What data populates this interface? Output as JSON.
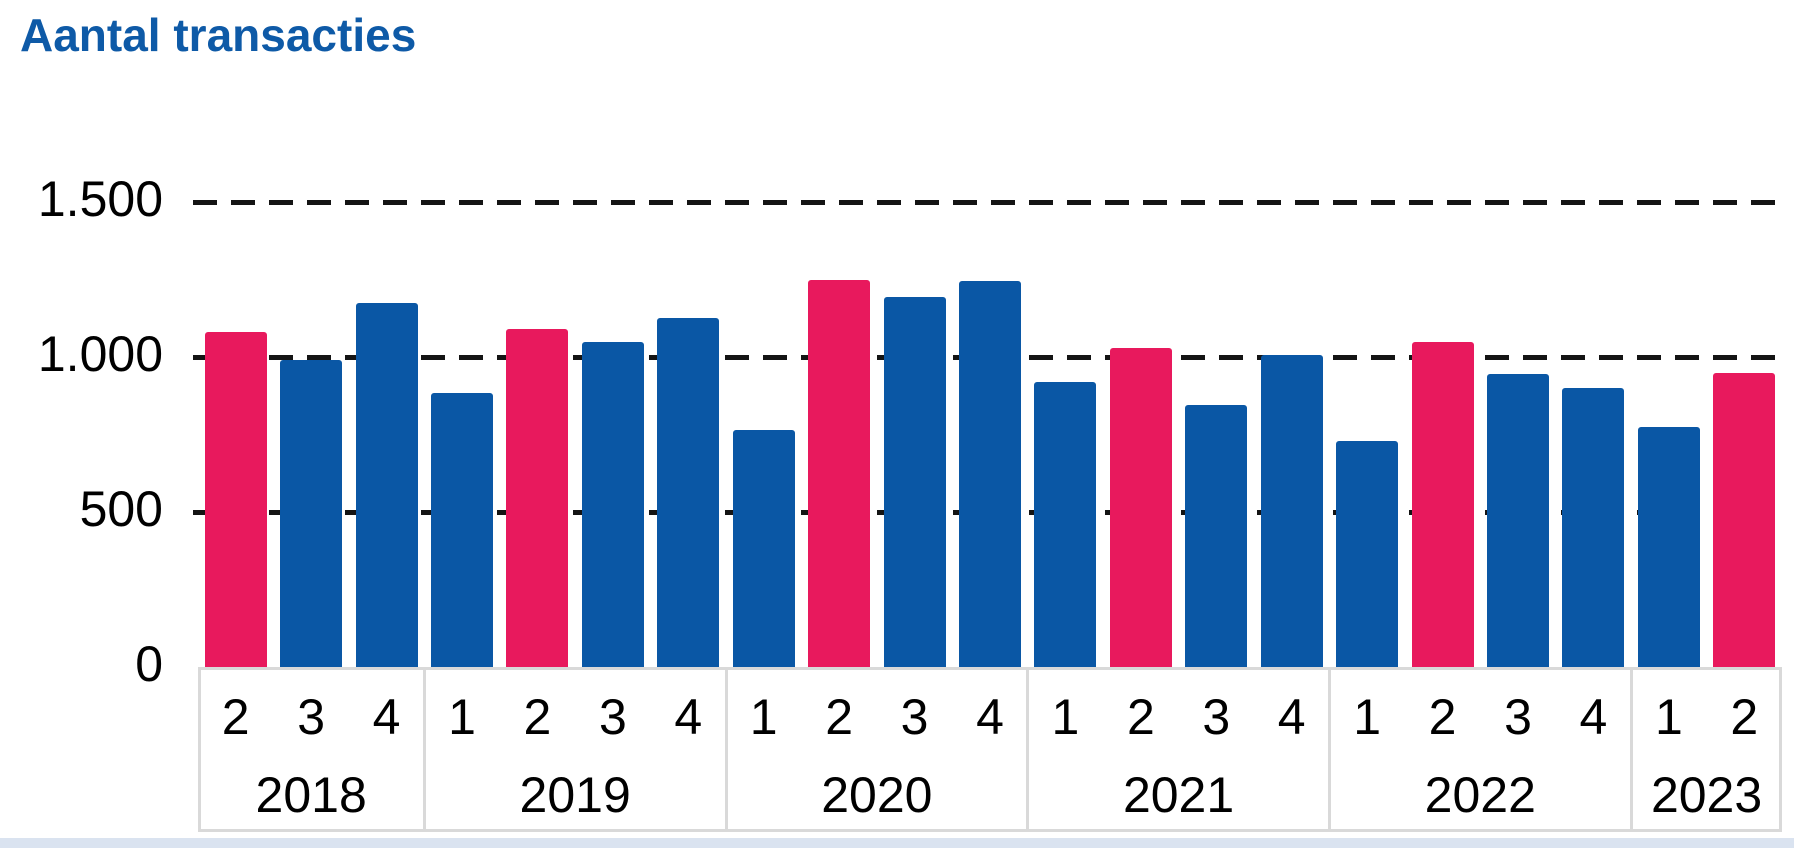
{
  "chart_data": {
    "type": "bar",
    "title": "Aantal transacties",
    "ylabel": "",
    "xlabel": "",
    "ylim": [
      0,
      1500
    ],
    "y_ticks": [
      {
        "label": "1.500",
        "value": 1500
      },
      {
        "label": "1.000",
        "value": 1000
      },
      {
        "label": "500",
        "value": 500
      },
      {
        "label": "0",
        "value": 0
      }
    ],
    "gridline_values": [
      500,
      1000,
      1500
    ],
    "grid_style": "dashed",
    "legend": "none",
    "groups": [
      {
        "year": "2018",
        "quarters": [
          "2",
          "3",
          "4"
        ],
        "values": [
          1080,
          990,
          1175
        ]
      },
      {
        "year": "2019",
        "quarters": [
          "1",
          "2",
          "3",
          "4"
        ],
        "values": [
          885,
          1090,
          1050,
          1125
        ]
      },
      {
        "year": "2020",
        "quarters": [
          "1",
          "2",
          "3",
          "4"
        ],
        "values": [
          765,
          1250,
          1195,
          1245
        ]
      },
      {
        "year": "2021",
        "quarters": [
          "1",
          "2",
          "3",
          "4"
        ],
        "values": [
          920,
          1030,
          845,
          1005
        ]
      },
      {
        "year": "2022",
        "quarters": [
          "1",
          "2",
          "3",
          "4"
        ],
        "values": [
          730,
          1050,
          945,
          900
        ]
      },
      {
        "year": "2023",
        "quarters": [
          "1",
          "2"
        ],
        "values": [
          775,
          950
        ]
      }
    ],
    "highlighted_quarter": "2",
    "colors": {
      "bar": "#0A57A5",
      "highlight": "#E8195D",
      "title": "#0E5AA7",
      "grid": "#141414",
      "table_border": "#D9D9D9",
      "bottom_band": "#DAE3F0",
      "text": "#000000"
    }
  }
}
